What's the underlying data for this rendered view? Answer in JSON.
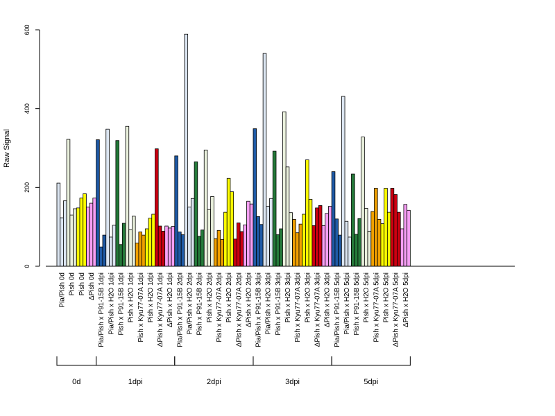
{
  "chart_data": {
    "type": "bar",
    "title": "",
    "xlabel": "",
    "ylabel": "Raw Signal",
    "ylim": [
      0,
      620
    ],
    "yticks": [
      0,
      200,
      400,
      600
    ],
    "grid": false,
    "bars_per_category": 3,
    "categories": [
      "Pia/Pish 0d",
      "Pish 0d",
      "Pish 0d",
      "ΔPish 0d",
      "Pia/Pish x P91-15B 1dpi",
      "Pia/Pish x H2O 1dpi",
      "Pish x P91-15B 1dpi",
      "Pish x H2O 1dpi",
      "Pish x Kyu77-07A 1dpi",
      "Pish x H2O 1dpi",
      "ΔPish x Kyu77-07A 1dpi",
      "ΔPish x H2O 1dpi",
      "Pia/Pish x P91-15B 2dpi",
      "Pia/Pish x H2O 2dpi",
      "Pish x P91-15B 2dpi",
      "Pish x H2O 2dpi",
      "Pish x Kyu77-07A 2dpi",
      "Pish x H2O 2dpi",
      "ΔPish x Kyu77-07A 2dpi",
      "ΔPish x H2O 2dpi",
      "Pia/Pish x P91-15B 3dpi",
      "Pia/Pish x H2O 3dpi",
      "Pish x P91-15B 3dpi",
      "Pish x H2O 3dpi",
      "Pish x Kyu77-07A 3dpi",
      "Pish x H2O 3dpi",
      "ΔPish x Kyu77-07A 3dpi",
      "ΔPish x H2O 3dpi",
      "Pia/Pish x P91-15B 5dpi",
      "Pia/Pish x H2O 5dpi",
      "Pish x P91-15B 5dpi",
      "Pish x H2O 5dpi",
      "Pish x Kyu77-07A 5dpi",
      "Pish x H2O 5dpi",
      "ΔPish x Kyu77-07A 5dpi",
      "ΔPish x H2O 5dpi"
    ],
    "values": [
      [
        211,
        123,
        166
      ],
      [
        322,
        130,
        146
      ],
      [
        148,
        173,
        184
      ],
      [
        150,
        160,
        173
      ],
      [
        321,
        49,
        79
      ],
      [
        348,
        74,
        104
      ],
      [
        319,
        55,
        109
      ],
      [
        355,
        93,
        127
      ],
      [
        59,
        87,
        79
      ],
      [
        95,
        122,
        132
      ],
      [
        298,
        102,
        89
      ],
      [
        102,
        97,
        101
      ],
      [
        280,
        87,
        80
      ],
      [
        589,
        150,
        172
      ],
      [
        265,
        76,
        92
      ],
      [
        295,
        144,
        177
      ],
      [
        70,
        91,
        68
      ],
      [
        137,
        223,
        189
      ],
      [
        69,
        110,
        88
      ],
      [
        105,
        165,
        158
      ],
      [
        349,
        126,
        106
      ],
      [
        540,
        152,
        172
      ],
      [
        292,
        80,
        95
      ],
      [
        392,
        252,
        136
      ],
      [
        119,
        85,
        107
      ],
      [
        132,
        270,
        170
      ],
      [
        103,
        148,
        154
      ],
      [
        103,
        134,
        152
      ],
      [
        240,
        120,
        79
      ],
      [
        431,
        114,
        74
      ],
      [
        234,
        81,
        121
      ],
      [
        328,
        147,
        89
      ],
      [
        139,
        198,
        119
      ],
      [
        108,
        198,
        137
      ],
      [
        198,
        182,
        137
      ],
      [
        95,
        157,
        142
      ]
    ],
    "fill_colors": [
      "#dbe5f1",
      "#eaf1dd",
      "#ffff00",
      "#f79ff5",
      "#1f5aa6",
      "#dbe5f1",
      "#257a3a",
      "#eaf1dd",
      "#f0a000",
      "#ffff00",
      "#cc0011",
      "#f79ff5",
      "#1f5aa6",
      "#dbe5f1",
      "#257a3a",
      "#eaf1dd",
      "#f0a000",
      "#ffff00",
      "#cc0011",
      "#f79ff5",
      "#1f5aa6",
      "#dbe5f1",
      "#257a3a",
      "#eaf1dd",
      "#f0a000",
      "#ffff00",
      "#cc0011",
      "#f79ff5",
      "#1f5aa6",
      "#dbe5f1",
      "#257a3a",
      "#eaf1dd",
      "#f0a000",
      "#ffff00",
      "#cc0011",
      "#f79ff5"
    ],
    "groups": [
      {
        "label": "0d",
        "count": 4
      },
      {
        "label": "1dpi",
        "count": 8
      },
      {
        "label": "2dpi",
        "count": 8
      },
      {
        "label": "3dpi",
        "count": 8
      },
      {
        "label": "5dpi",
        "count": 8
      }
    ]
  }
}
